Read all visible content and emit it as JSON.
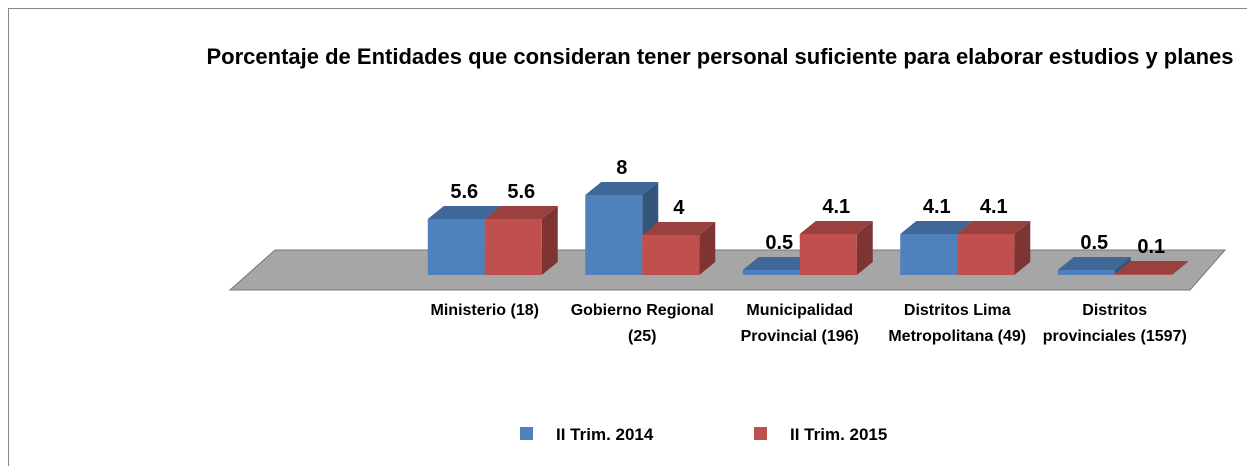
{
  "chart_data": {
    "type": "bar3d",
    "title": "Porcentaje de Entidades que consideran tener personal  suficiente para elaborar estudios y planes",
    "categories": [
      "Ministerio (18)",
      "Gobierno Regional (25)",
      "Municipalidad Provincial (196)",
      "Distritos Lima Metropolitana (49)",
      "Distritos provinciales (1597)"
    ],
    "series": [
      {
        "name": "II Trim. 2014",
        "color": "#4f81bd",
        "values": [
          5.6,
          8,
          0.5,
          4.1,
          0.5
        ]
      },
      {
        "name": "II Trim. 2015",
        "color": "#c0504d",
        "values": [
          5.6,
          4,
          4.1,
          4.1,
          0.1
        ]
      }
    ],
    "legend": "bottom"
  }
}
